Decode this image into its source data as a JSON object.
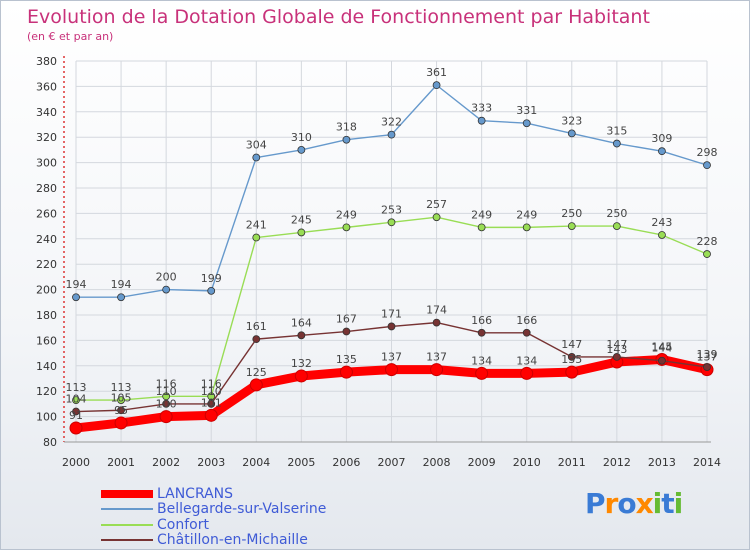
{
  "title": "Evolution de la Dotation Globale de Fonctionnement par Habitant",
  "subtitle": "(en € et par an)",
  "logo_text": "Proxiti",
  "chart_data": {
    "type": "line",
    "title": "Evolution de la Dotation Globale de Fonctionnement par Habitant",
    "subtitle": "(en € et par an)",
    "x": [
      "2000",
      "2001",
      "2002",
      "2003",
      "2004",
      "2005",
      "2006",
      "2007",
      "2008",
      "2009",
      "2010",
      "2011",
      "2012",
      "2013",
      "2014"
    ],
    "ylim": [
      80,
      380
    ],
    "yticks": [
      "80",
      "100",
      "120",
      "140",
      "160",
      "180",
      "200",
      "220",
      "240",
      "260",
      "280",
      "300",
      "320",
      "340",
      "360",
      "380"
    ],
    "grid": true,
    "legend": "bottom-left",
    "series": [
      {
        "name": "LANCRANS",
        "color": "#ff0000",
        "values": [
          91,
          95,
          100,
          101,
          125,
          132,
          135,
          137,
          137,
          134,
          134,
          135,
          143,
          145,
          137
        ]
      },
      {
        "name": "Bellegarde-sur-Valserine",
        "color": "#6699cc",
        "values": [
          194,
          194,
          200,
          199,
          304,
          310,
          318,
          322,
          361,
          333,
          331,
          323,
          315,
          309,
          298
        ]
      },
      {
        "name": "Confort",
        "color": "#99dd55",
        "values": [
          113,
          113,
          116,
          116,
          241,
          245,
          249,
          253,
          257,
          249,
          249,
          250,
          250,
          243,
          228
        ]
      },
      {
        "name": "Châtillon-en-Michaille",
        "color": "#773333",
        "values": [
          104,
          105,
          110,
          110,
          161,
          164,
          167,
          171,
          174,
          166,
          166,
          147,
          147,
          144,
          139
        ]
      }
    ]
  }
}
